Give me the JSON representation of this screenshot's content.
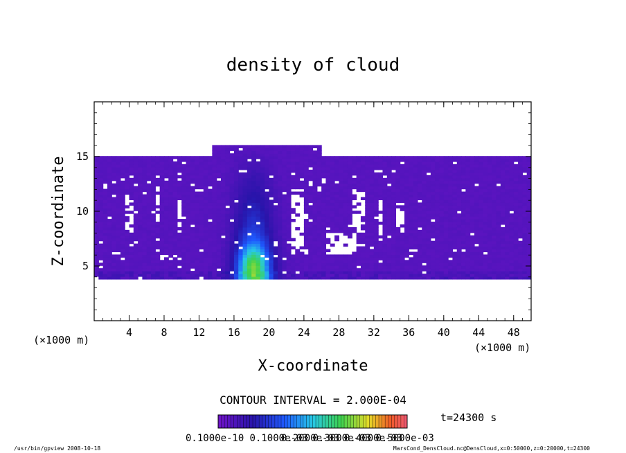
{
  "chart_data": {
    "type": "heatmap",
    "title": "density of cloud",
    "xlabel": "X-coordinate",
    "ylabel": "Z-coordinate",
    "x_unit": "(×1000 m)",
    "z_unit": "(×1000 m)",
    "xlim": [
      0,
      50
    ],
    "ylim": [
      0,
      20
    ],
    "x_ticks": [
      "4",
      "8",
      "12",
      "16",
      "20",
      "24",
      "28",
      "32",
      "36",
      "40",
      "44",
      "48"
    ],
    "y_ticks": [
      "5",
      "10",
      "15"
    ],
    "contour_interval": "CONTOUR INTERVAL = 2.000E-04",
    "time": "t=24300 s",
    "colorbar": {
      "min": 0,
      "max": 0.0006,
      "labels": [
        "0.1000e-10",
        "0.1000e-03",
        "0.2000e-03",
        "0.3000e-03",
        "0.4000e-03",
        "0.5000e-03"
      ]
    },
    "field": {
      "cloud_base": 3.8,
      "cloud_top": 15,
      "anvil_top": 16,
      "anvil_x": [
        13.5,
        25.5
      ],
      "core_x": 18,
      "core_value": 0.0004
    }
  },
  "footer": {
    "left": "/usr/bin/gpview   2008-10-18",
    "right": "MarsCond_DensCloud.nc@DensCloud,x=0:50000,z=0:20000,t=24300"
  },
  "colors": {
    "background_field": "#7d1ee8",
    "core": "#2f6bff",
    "frame": "#000000"
  }
}
